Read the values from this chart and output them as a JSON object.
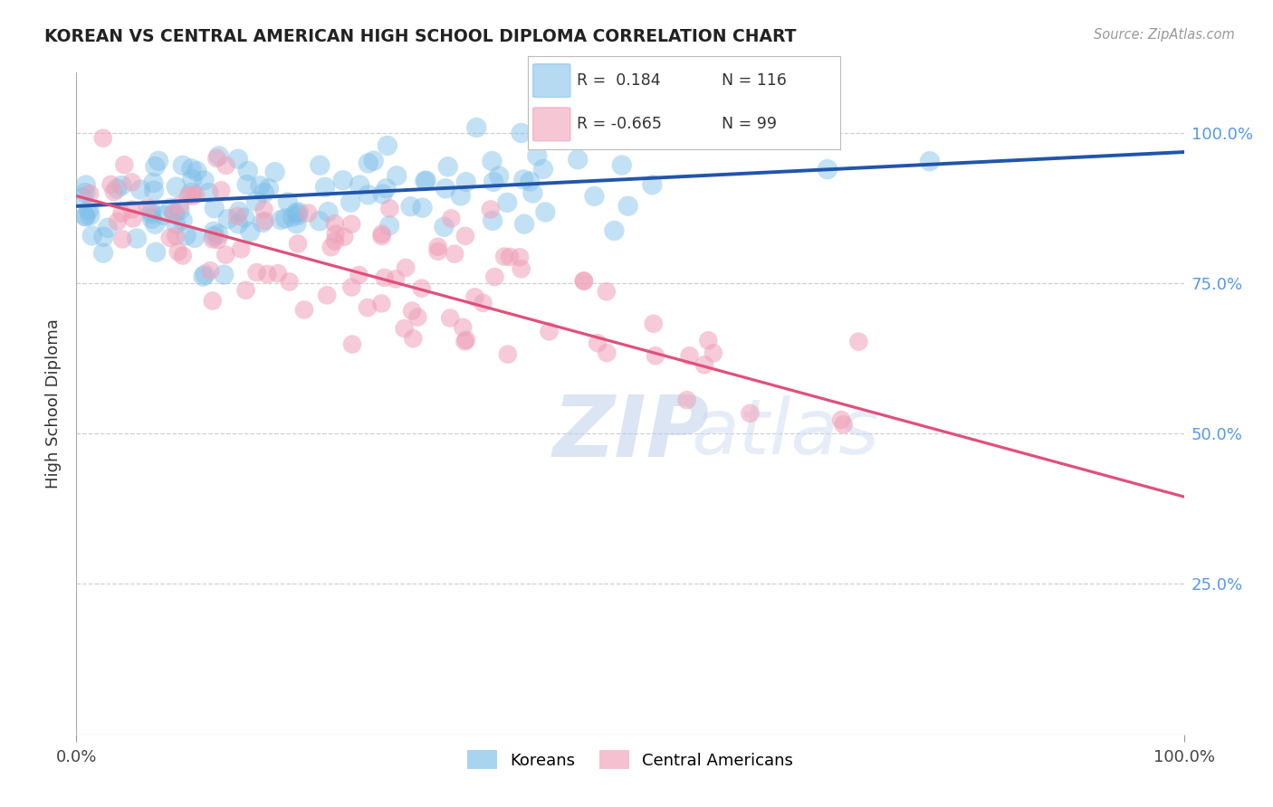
{
  "title": "KOREAN VS CENTRAL AMERICAN HIGH SCHOOL DIPLOMA CORRELATION CHART",
  "source": "Source: ZipAtlas.com",
  "ylabel": "High School Diploma",
  "xlim": [
    0.0,
    1.0
  ],
  "ylim": [
    0.0,
    1.1
  ],
  "yticks": [
    0.25,
    0.5,
    0.75,
    1.0
  ],
  "ytick_labels": [
    "25.0%",
    "50.0%",
    "75.0%",
    "100.0%"
  ],
  "xtick_labels": [
    "0.0%",
    "100.0%"
  ],
  "legend_entries": [
    "Koreans",
    "Central Americans"
  ],
  "korean_R": 0.184,
  "korean_N": 116,
  "ca_R": -0.665,
  "ca_N": 99,
  "korean_color": "#7abde8",
  "ca_color": "#f0a0b8",
  "korean_line_color": "#2255aa",
  "ca_line_color": "#e0507a",
  "background_color": "#ffffff",
  "grid_color": "#bbbbbb",
  "title_color": "#222222",
  "watermark_zip": "ZIP",
  "watermark_atlas": "atlas",
  "right_tick_color": "#5599ee",
  "korean_line_start_y": 0.878,
  "korean_line_end_y": 0.968,
  "ca_line_start_y": 0.895,
  "ca_line_end_y": 0.395
}
